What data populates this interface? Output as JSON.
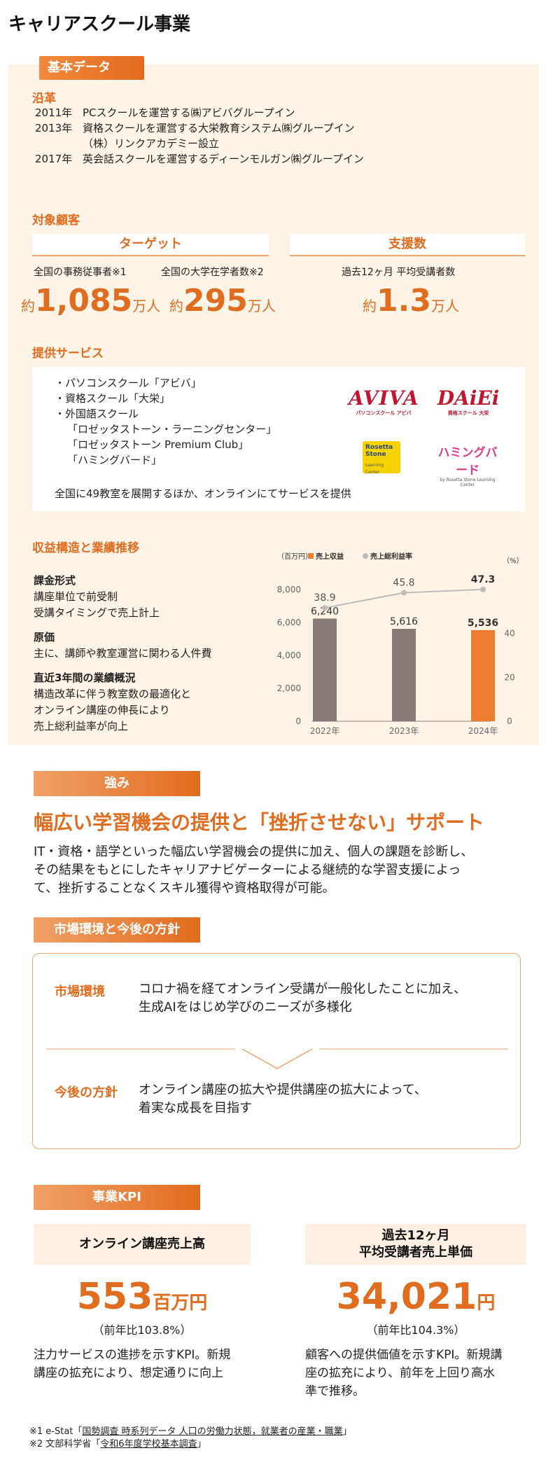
{
  "page_title": "キャリアスクール事業",
  "basic_tab": "基本データ",
  "history": {
    "heading": "沿革",
    "items": [
      {
        "year": "2011年",
        "text": "PCスクールを運営する㈱アビバグループイン"
      },
      {
        "year": "2013年",
        "text": "資格スクールを運営する大栄教育システム㈱グループイン"
      },
      {
        "year": "",
        "text": "（株）リンクアカデミー設立"
      },
      {
        "year": "2017年",
        "text": "英会話スクールを運営するディーンモルガン㈱グループイン"
      }
    ]
  },
  "customers": {
    "heading": "対象顧客",
    "target_head": "ターゲット",
    "support_head": "支援数",
    "target1_label": "全国の事務従事者※1",
    "target2_label": "全国の大学在学者数※2",
    "support_label": "過去12ヶ月 平均受講者数",
    "t1_pre": "約",
    "t1_num": "1,085",
    "t1_unit": "万人",
    "t2_pre": "約",
    "t2_num": "295",
    "t2_unit": "万人",
    "s_pre": "約",
    "s_num": "1.3",
    "s_unit": "万人"
  },
  "services": {
    "heading": "提供サービス",
    "items": [
      "・パソコンスクール「アビバ」",
      "・資格スクール「大栄」",
      "・外国語スクール",
      "「ロゼッタストーン・ラーニングセンター」",
      "「ロゼッタストーン Premium Club」",
      "「ハミングバード」"
    ],
    "note": "全国に49教室を展開するほか、オンラインにてサービスを提供",
    "logos": {
      "aviva": "AVIVA",
      "aviva_sub": "パソコンスクール アビバ",
      "daiei": "DAiEi",
      "daiei_sub": "資格スクール 大栄",
      "rosetta": "Rosetta Stone",
      "rosetta_sub": "Learning Center",
      "humming": "ハミングバード",
      "humming_sub": "by Rosetta Stone Learning Center"
    }
  },
  "revenue": {
    "heading": "収益構造と業績推移",
    "blocks": [
      {
        "title": "課金形式",
        "lines": [
          "講座単位で前受制",
          "受講タイミングで売上計上"
        ]
      },
      {
        "title": "原価",
        "lines": [
          "主に、講師や教室運営に関わる人件費"
        ]
      },
      {
        "title": "直近3年間の業績概況",
        "lines": [
          "構造改革に伴う教室数の最適化と",
          "オンライン講座の伸長により",
          "売上総利益率が向上"
        ]
      }
    ]
  },
  "chart_data": {
    "type": "bar",
    "categories": [
      "2022年",
      "2023年",
      "2024年"
    ],
    "series": [
      {
        "name": "売上収益",
        "values": [
          6240,
          5616,
          5536
        ],
        "color": "#867b77",
        "highlight_color": "#ee7d31"
      },
      {
        "name": "売上総利益率",
        "type": "line",
        "values": [
          38.9,
          45.8,
          47.3
        ],
        "color": "#bcbcbc"
      }
    ],
    "bar_labels": [
      "6,240",
      "5,616",
      "5,536"
    ],
    "line_labels": [
      "38.9",
      "45.8",
      "47.3"
    ],
    "left_unit": "（百万円）",
    "right_unit": "（%）",
    "ylim": [
      0,
      8000
    ],
    "yticks": [
      "0",
      "2,000",
      "4,000",
      "6,000",
      "8,000"
    ],
    "y2lim": [
      0,
      60
    ],
    "y2ticks": [
      "0",
      "20",
      "40"
    ]
  },
  "strength": {
    "tab": "強み",
    "title": "幅広い学習機会の提供と「挫折させない」サポート",
    "body": [
      "IT・資格・語学といった幅広い学習機会の提供に加え、個人の課題を診断し、",
      "その結果をもとにしたキャリアナビゲーターによる継続的な学習支援によっ",
      "て、挫折することなくスキル獲得や資格取得が可能。"
    ]
  },
  "market": {
    "tab": "市場環境と今後の方針",
    "env_label": "市場環境",
    "env_text": [
      "コロナ禍を経てオンライン受講が一般化したことに加え、",
      "生成AIをはじめ学びのニーズが多様化"
    ],
    "policy_label": "今後の方針",
    "policy_text": [
      "オンライン講座の拡大や提供講座の拡大によって、",
      "着実な成長を目指す"
    ]
  },
  "kpi": {
    "tab": "事業KPI",
    "k1_head": "オンライン講座売上高",
    "k1_num": "553",
    "k1_unit": "百万円",
    "k1_yoy": "（前年比103.8%）",
    "k1_desc": [
      "注力サービスの進捗を示すKPI。新規",
      "講座の拡充により、想定通りに向上"
    ],
    "k2_head": [
      "過去12ヶ月",
      "平均受講者売上単価"
    ],
    "k2_num": "34,021",
    "k2_unit": "円",
    "k2_yoy": "（前年比104.3%）",
    "k2_desc": [
      "顧客への提供価値を示すKPI。新規講",
      "座の拡充により、前年を上回り高水",
      "準で推移。"
    ]
  },
  "footnotes": {
    "f1_pre": "※1 e-Stat「",
    "f1_link": "国勢調査 時系列データ 人口の労働力状態，就業者の産業・職業",
    "f1_post": "」",
    "f2_pre": "※2 文部科学省「",
    "f2_link": "令和6年度学校基本調査",
    "f2_post": "」"
  }
}
